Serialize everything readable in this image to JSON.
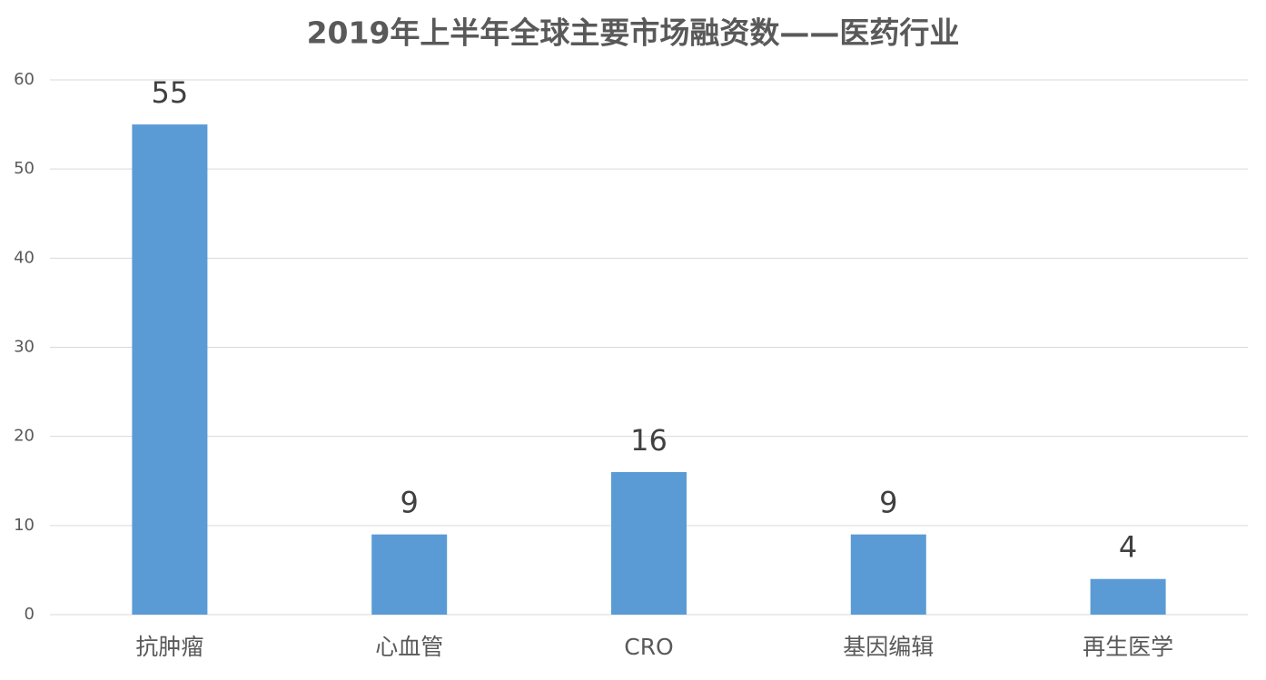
{
  "chart_data": {
    "type": "bar",
    "title": "2019年上半年全球主要市场融资数——医药行业",
    "categories": [
      "抗肿瘤",
      "心血管",
      "CRO",
      "基因编辑",
      "再生医学"
    ],
    "values": [
      55,
      9,
      16,
      9,
      4
    ],
    "color": "#5b9bd5",
    "ylim": [
      0,
      60
    ],
    "yticks": [
      0,
      10,
      20,
      30,
      40,
      50,
      60
    ],
    "grid": true
  }
}
